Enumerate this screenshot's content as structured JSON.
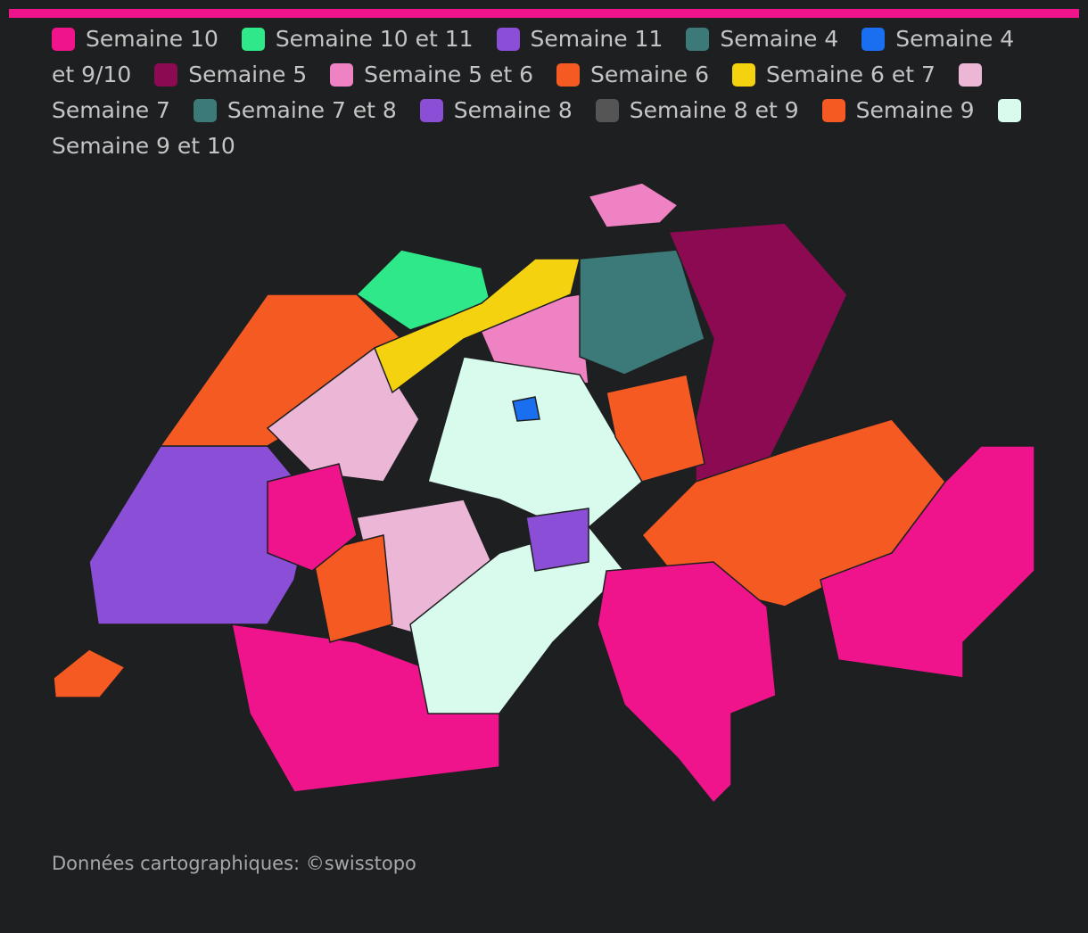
{
  "legend": [
    {
      "label": "Semaine 10",
      "color": "#f0148c"
    },
    {
      "label": "Semaine 10 et 11",
      "color": "#2ee88a"
    },
    {
      "label": "Semaine 11",
      "color": "#8a4fd6"
    },
    {
      "label": "Semaine 4",
      "color": "#3b7a78"
    },
    {
      "label": "Semaine 4 et 9/10",
      "color": "#1a6ef0"
    },
    {
      "label": "Semaine 5",
      "color": "#8c0a52"
    },
    {
      "label": "Semaine 5 et 6",
      "color": "#ee82c2"
    },
    {
      "label": "Semaine 6",
      "color": "#f55a23"
    },
    {
      "label": "Semaine 6 et 7",
      "color": "#f5d20f"
    },
    {
      "label": "Semaine 7",
      "color": "#ecb6d6"
    },
    {
      "label": "Semaine 7 et 8",
      "color": "#3b7a78"
    },
    {
      "label": "Semaine 8",
      "color": "#8a4fd6"
    },
    {
      "label": "Semaine 8 et 9",
      "color": "#555555"
    },
    {
      "label": "Semaine 9",
      "color": "#f55a23"
    },
    {
      "label": "Semaine 9 et 10",
      "color": "#d9fbee"
    }
  ],
  "source": "Données cartographiques: ©swisstopo"
}
